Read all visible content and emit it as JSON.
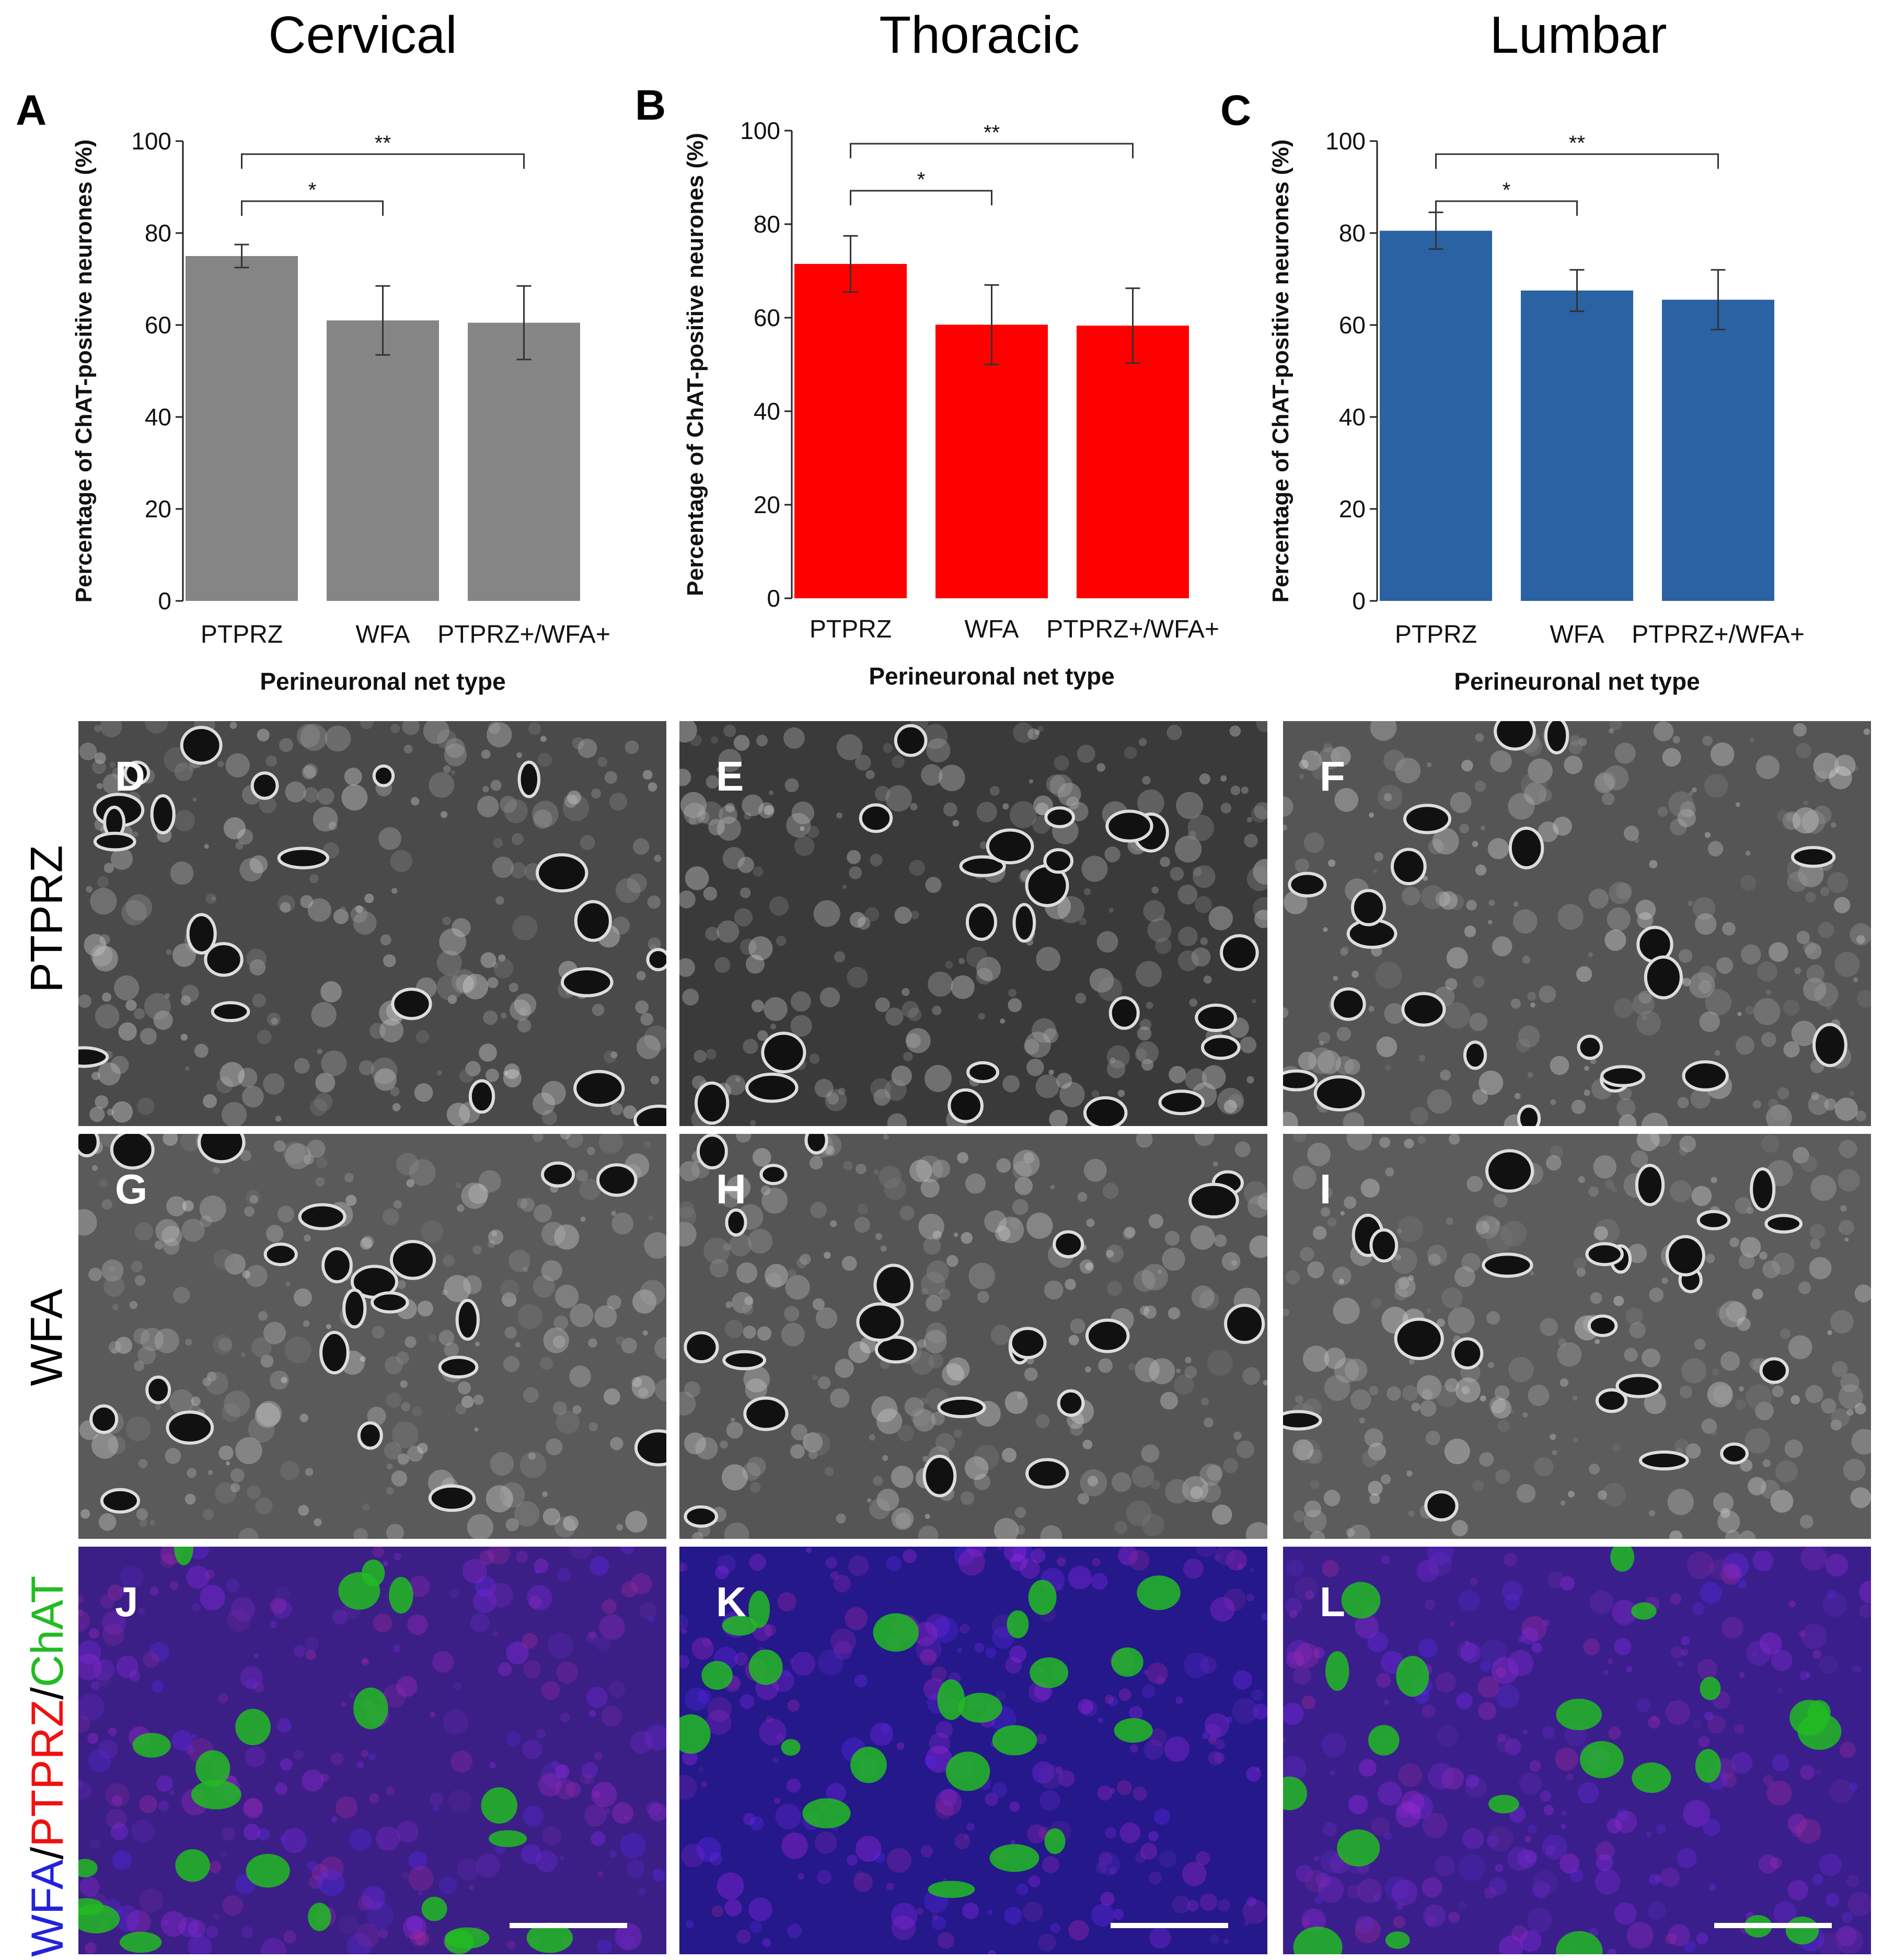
{
  "columns": [
    {
      "title": "Cervical"
    },
    {
      "title": "Thoracic"
    },
    {
      "title": "Lumbar"
    }
  ],
  "row_labels": {
    "ptprz": "PTPRZ",
    "wfa": "WFA",
    "merge_wfa": "WFA",
    "merge_sep1": "/",
    "merge_ptprz": "PTPRZ",
    "merge_sep2": "/",
    "merge_chat": "ChAT"
  },
  "colors": {
    "cervical_bar": "#858585",
    "thoracic_bar": "#ff0000",
    "lumbar_bar": "#2a62a3",
    "merge_wfa": "#2222dd",
    "merge_ptprz": "#ee1111",
    "merge_chat": "#22bb22"
  },
  "micro_panels": [
    {
      "letter": "D",
      "style": "gray"
    },
    {
      "letter": "E",
      "style": "gray"
    },
    {
      "letter": "F",
      "style": "gray"
    },
    {
      "letter": "G",
      "style": "gray"
    },
    {
      "letter": "H",
      "style": "gray"
    },
    {
      "letter": "I",
      "style": "gray"
    },
    {
      "letter": "J",
      "style": "merge"
    },
    {
      "letter": "K",
      "style": "merge"
    },
    {
      "letter": "L",
      "style": "merge"
    }
  ],
  "chart_data": [
    {
      "panel": "A",
      "type": "bar",
      "categories": [
        "PTPRZ",
        "WFA",
        "PTPRZ+/WFA+"
      ],
      "values": [
        75,
        61,
        60.5
      ],
      "errors": [
        2.5,
        7.5,
        8
      ],
      "ylabel": "Percentage of ChAT-positive neurones (%)",
      "xlabel": "Perineuronal net type",
      "ylim": [
        0,
        100
      ],
      "yticks": [
        "0",
        "20",
        "40",
        "60",
        "80",
        "100"
      ],
      "significance": [
        {
          "from": 0,
          "to": 1,
          "label": "*"
        },
        {
          "from": 0,
          "to": 2,
          "label": "**"
        }
      ]
    },
    {
      "panel": "B",
      "type": "bar",
      "categories": [
        "PTPRZ",
        "WFA",
        "PTPRZ+/WFA+"
      ],
      "values": [
        71.5,
        58.5,
        58.3
      ],
      "errors": [
        6,
        8.5,
        8
      ],
      "ylabel": "Percentage of ChAT-positive neurones (%)",
      "xlabel": "Perineuronal net type",
      "ylim": [
        0,
        100
      ],
      "yticks": [
        "0",
        "20",
        "40",
        "60",
        "80",
        "100"
      ],
      "significance": [
        {
          "from": 0,
          "to": 1,
          "label": "*"
        },
        {
          "from": 0,
          "to": 2,
          "label": "**"
        }
      ]
    },
    {
      "panel": "C",
      "type": "bar",
      "categories": [
        "PTPRZ",
        "WFA",
        "PTPRZ+/WFA+"
      ],
      "values": [
        80.5,
        67.5,
        65.5
      ],
      "errors": [
        4,
        4.5,
        6.5
      ],
      "ylabel": "Percentage of ChAT-positive neurones (%)",
      "xlabel": "Perineuronal net type",
      "ylim": [
        0,
        100
      ],
      "yticks": [
        "0",
        "20",
        "40",
        "60",
        "80",
        "100"
      ],
      "significance": [
        {
          "from": 0,
          "to": 1,
          "label": "*"
        },
        {
          "from": 0,
          "to": 2,
          "label": "**"
        }
      ]
    }
  ]
}
